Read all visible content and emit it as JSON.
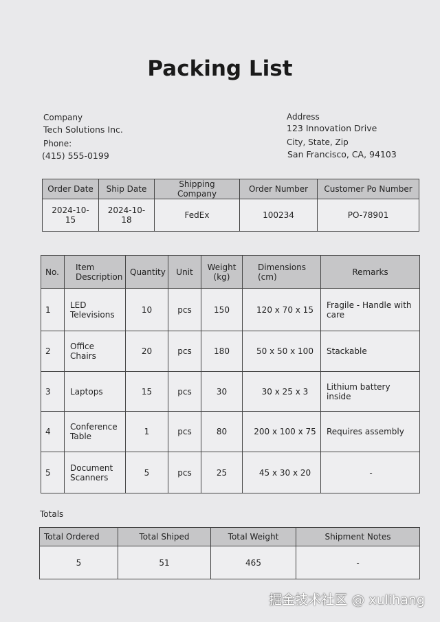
{
  "title": "Packing List",
  "company": {
    "label": "Company",
    "name": "Tech Solutions Inc.",
    "phone_label": "Phone:",
    "phone": "(415) 555-0199"
  },
  "address": {
    "label": "Address",
    "street": "123 Innovation Drive",
    "city_label": "City, State, Zip",
    "city": "San Francisco, CA, 94103"
  },
  "order": {
    "headers": [
      "Order Date",
      "Ship Date",
      "Shipping Company",
      "Order Number",
      "Customer Po Number"
    ],
    "values": [
      "2024-10-15",
      "2024-10-18",
      "FedEx",
      "100234",
      "PO-78901"
    ]
  },
  "items": {
    "headers": [
      "No.",
      "Item Description",
      "Quantity",
      "Unit",
      "Weight (kg)",
      "Dimensions (cm)",
      "Remarks"
    ],
    "rows": [
      [
        "1",
        "LED Televisions",
        "10",
        "pcs",
        "150",
        "120 x 70 x 15",
        "Fragile - Handle with care"
      ],
      [
        "2",
        "Office Chairs",
        "20",
        "pcs",
        "180",
        "50 x 50 x 100",
        "Stackable"
      ],
      [
        "3",
        "Laptops",
        "15",
        "pcs",
        "30",
        "30 x 25 x 3",
        "Lithium battery inside"
      ],
      [
        "4",
        "Conference Table",
        "1",
        "pcs",
        "80",
        "200 x 100 x 75",
        "Requires assembly"
      ],
      [
        "5",
        "Document Scanners",
        "5",
        "pcs",
        "25",
        "45 x 30 x 20",
        "-"
      ]
    ]
  },
  "totals": {
    "label": "Totals",
    "headers": [
      "Total Ordered",
      "Total  Shiped",
      "Total  Weight",
      "Shipment Notes"
    ],
    "values": [
      "5",
      "51",
      "465",
      "-"
    ]
  },
  "watermark": "掘金技术社区 @ xulihang"
}
